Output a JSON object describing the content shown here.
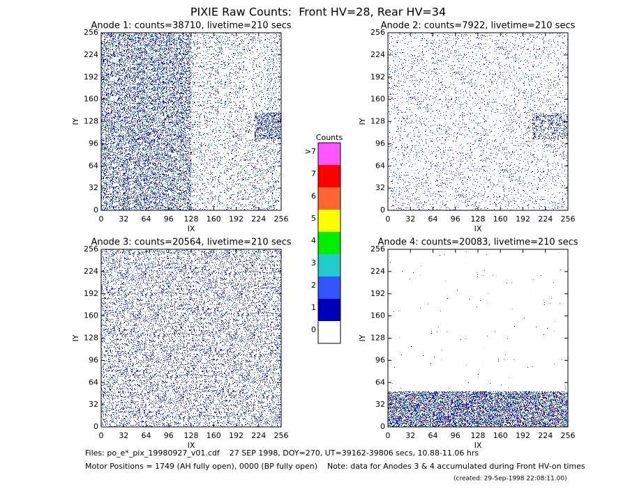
{
  "title": "PIXIE Raw Counts:  Front HV=28, Rear HV=34",
  "chart_data": [
    {
      "type": "image",
      "title": "Anode 1: counts=38710, livetime=210 secs",
      "x_label": "IX",
      "y_label": "IY",
      "xlim": [
        0,
        256
      ],
      "ylim": [
        0,
        256
      ],
      "xticks": [
        0,
        32,
        64,
        96,
        128,
        160,
        192,
        224,
        256
      ],
      "yticks": [
        0,
        32,
        64,
        96,
        128,
        160,
        192,
        224,
        256
      ]
    },
    {
      "type": "image",
      "title": "Anode 2: counts=7922, livetime=210 secs",
      "x_label": "IX",
      "y_label": "IY",
      "xlim": [
        0,
        256
      ],
      "ylim": [
        0,
        256
      ],
      "xticks": [
        0,
        32,
        64,
        96,
        128,
        160,
        192,
        224,
        256
      ],
      "yticks": [
        0,
        32,
        64,
        96,
        128,
        160,
        192,
        224,
        256
      ]
    },
    {
      "type": "image",
      "title": "Anode 3: counts=20564, livetime=210 secs",
      "x_label": "IX",
      "y_label": "IY",
      "xlim": [
        0,
        256
      ],
      "ylim": [
        0,
        256
      ],
      "xticks": [
        0,
        32,
        64,
        96,
        128,
        160,
        192,
        224,
        256
      ],
      "yticks": [
        0,
        32,
        64,
        96,
        128,
        160,
        192,
        224,
        256
      ]
    },
    {
      "type": "image",
      "title": "Anode 4: counts=20083, livetime=210 secs",
      "x_label": "IX",
      "y_label": "IY",
      "xlim": [
        0,
        256
      ],
      "ylim": [
        0,
        256
      ],
      "xticks": [
        0,
        32,
        64,
        96,
        128,
        160,
        192,
        224,
        256
      ],
      "yticks": [
        0,
        32,
        64,
        96,
        128,
        160,
        192,
        224,
        256
      ]
    }
  ],
  "colorbar": {
    "title": "Counts",
    "labels": [
      "0",
      "1",
      "2",
      "3",
      "4",
      "5",
      "6",
      "7",
      ">7"
    ],
    "colors": [
      "#ffffff",
      "#0000bb",
      "#3355ff",
      "#22cccc",
      "#00ee00",
      "#ffff00",
      "#ff6633",
      "#ff0000",
      "#ff55ff"
    ]
  },
  "footer": [
    "Files: po_e*_pix_19980927_v01.cdf    27 SEP 1998, DOY=270, UT=39162-39806 secs, 10.88-11.06 hrs",
    "Motor Positions = 1749 (AH fully open), 0000 (BP fully open)    Note: data for Anodes 3 & 4 accumulated during Front HV-on times",
    "(created: 29-Sep-1998 22:08:11.00)"
  ]
}
